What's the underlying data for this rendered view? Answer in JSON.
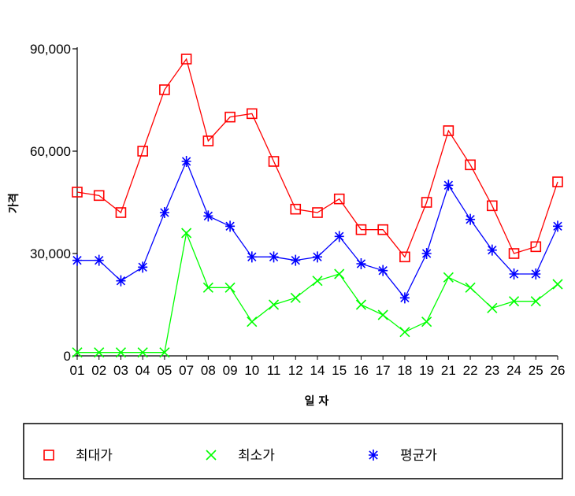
{
  "chart_data": {
    "type": "line",
    "title": "",
    "xlabel": "일 자",
    "ylabel": "가격",
    "categories": [
      "01",
      "02",
      "03",
      "04",
      "05",
      "07",
      "08",
      "09",
      "10",
      "11",
      "12",
      "14",
      "15",
      "16",
      "17",
      "18",
      "19",
      "21",
      "22",
      "23",
      "24",
      "25",
      "26"
    ],
    "ylim": [
      0,
      90000
    ],
    "yticks": [
      0,
      30000,
      60000,
      90000
    ],
    "ytick_labels": [
      "0",
      "30,000",
      "60,000",
      "90,000"
    ],
    "grid": false,
    "legend": "bottom",
    "series": [
      {
        "name": "최대가",
        "color": "#ff0000",
        "marker": "square",
        "values": [
          48000,
          47000,
          42000,
          60000,
          78000,
          87000,
          63000,
          70000,
          71000,
          57000,
          43000,
          42000,
          46000,
          37000,
          37000,
          29000,
          45000,
          66000,
          56000,
          44000,
          30000,
          32000,
          51000
        ]
      },
      {
        "name": "최소가",
        "color": "#00ff00",
        "marker": "x",
        "values": [
          1000,
          1000,
          1000,
          1000,
          1000,
          36000,
          20000,
          20000,
          10000,
          15000,
          17000,
          22000,
          24000,
          15000,
          12000,
          7000,
          10000,
          23000,
          20000,
          14000,
          16000,
          16000,
          21000
        ]
      },
      {
        "name": "평균가",
        "color": "#0000ff",
        "marker": "asterisk",
        "values": [
          28000,
          28000,
          22000,
          26000,
          42000,
          57000,
          41000,
          38000,
          29000,
          29000,
          28000,
          29000,
          35000,
          27000,
          25000,
          17000,
          30000,
          50000,
          40000,
          31000,
          24000,
          24000,
          38000
        ]
      }
    ]
  }
}
